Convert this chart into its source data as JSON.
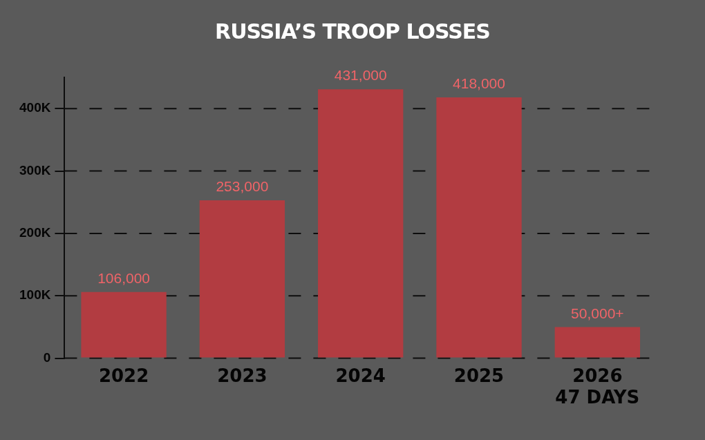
{
  "chart_data": {
    "type": "bar",
    "title": "RUSSIA’S TROOP LOSSES",
    "categories": [
      "2022",
      "2023",
      "2024",
      "2025",
      "2026\n47 DAYS"
    ],
    "values": [
      106000,
      253000,
      431000,
      418000,
      50000
    ],
    "value_labels": [
      "106,000",
      "253,000",
      "431,000",
      "418,000",
      "50,000+"
    ],
    "color": "#b23c41",
    "yticks": [
      {
        "value": 0,
        "label": "0"
      },
      {
        "value": 100000,
        "label": "100K"
      },
      {
        "value": 200000,
        "label": "200K"
      },
      {
        "value": 300000,
        "label": "300K"
      },
      {
        "value": 400000,
        "label": "400K"
      }
    ],
    "ylim": [
      0,
      450000
    ],
    "grid": "y",
    "line_style": "dashed",
    "legend": false
  }
}
